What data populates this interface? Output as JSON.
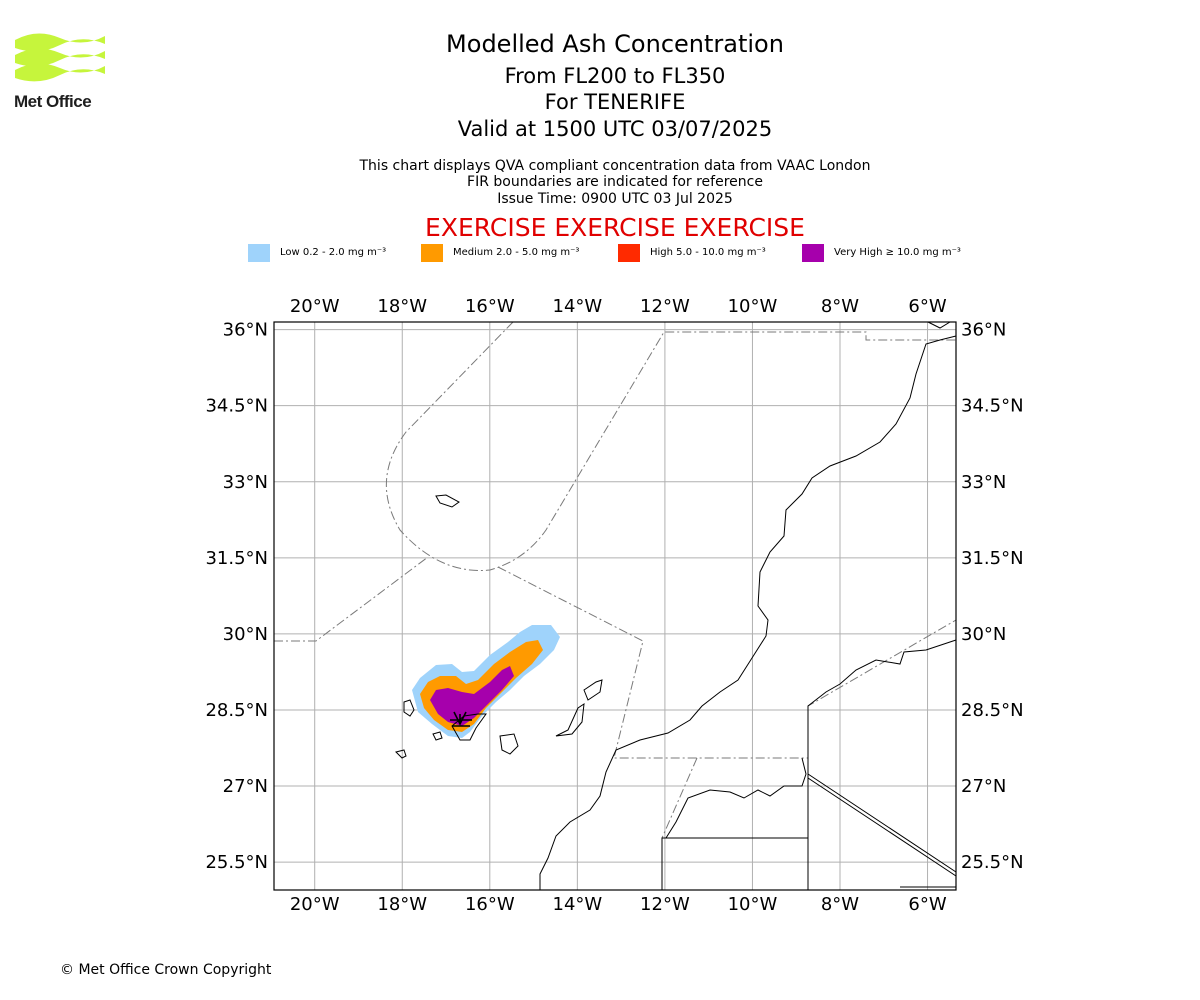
{
  "header": {
    "logo_text": "Met Office",
    "title": "Modelled Ash Concentration",
    "levels": "From FL200 to FL350",
    "location": "For TENERIFE",
    "valid": "Valid at 1500 UTC 03/07/2025",
    "note1": "This chart displays QVA compliant concentration data from VAAC London",
    "note2": "FIR boundaries are indicated for reference",
    "issue": "Issue Time: 0900 UTC 03 Jul 2025",
    "exercise": "EXERCISE EXERCISE EXERCISE"
  },
  "legend": [
    {
      "label": "Low 0.2 - 2.0 mg m⁻³",
      "color": "#9fd3fb"
    },
    {
      "label": "Medium 2.0 - 5.0 mg m⁻³",
      "color": "#ff9a00"
    },
    {
      "label": "High 5.0 - 10.0 mg m⁻³",
      "color": "#ff2a00"
    },
    {
      "label": "Very High ≥ 10.0 mg m⁻³",
      "color": "#a600ac"
    }
  ],
  "map": {
    "lon_labels": [
      "20°W",
      "18°W",
      "16°W",
      "14°W",
      "12°W",
      "10°W",
      "8°W",
      "6°W"
    ],
    "lon_values": [
      -20,
      -18,
      -16,
      -14,
      -12,
      -10,
      -8,
      -6
    ],
    "lat_labels": [
      "36°N",
      "34.5°N",
      "33°N",
      "31.5°N",
      "30°N",
      "28.5°N",
      "27°N",
      "25.5°N"
    ],
    "lat_values": [
      36,
      34.5,
      33,
      31.5,
      30,
      28.5,
      27,
      25.5
    ],
    "volcano": "Tenerife"
  },
  "footer": {
    "copyright": "© Met Office Crown Copyright"
  }
}
